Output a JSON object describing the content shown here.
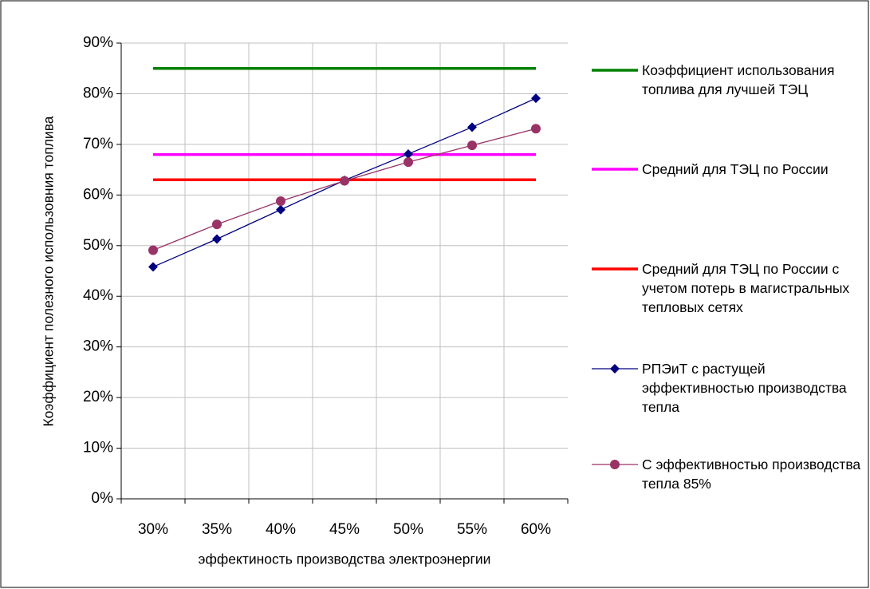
{
  "chart_data": {
    "type": "line",
    "x_label": "эффектиность производства электроэнергии",
    "y_label": "Коэффициент полезного использовния топлива",
    "categories": [
      "30%",
      "35%",
      "40%",
      "45%",
      "50%",
      "55%",
      "60%"
    ],
    "ylim": [
      0,
      90
    ],
    "yticks": [
      {
        "value": 0,
        "label": "0%"
      },
      {
        "value": 10,
        "label": "10%"
      },
      {
        "value": 20,
        "label": "20%"
      },
      {
        "value": 30,
        "label": "30%"
      },
      {
        "value": 40,
        "label": "40%"
      },
      {
        "value": 50,
        "label": "50%"
      },
      {
        "value": 60,
        "label": "60%"
      },
      {
        "value": 70,
        "label": "70%"
      },
      {
        "value": 80,
        "label": "80%"
      },
      {
        "value": 90,
        "label": "90%"
      }
    ],
    "grid": true,
    "series": [
      {
        "name": "Коэффициент использования топлива для лучшей ТЭЦ",
        "color": "#008000",
        "marker": "none",
        "values": [
          85,
          85,
          85,
          85,
          85,
          85,
          85
        ]
      },
      {
        "name": "Средний для ТЭЦ по России",
        "color": "#ff00ff",
        "marker": "none",
        "values": [
          68,
          68,
          68,
          68,
          68,
          68,
          68
        ]
      },
      {
        "name": "Средний для ТЭЦ по России с учетом потерь в магистральных тепловых сетях",
        "color": "#ff0000",
        "marker": "none",
        "values": [
          63,
          63,
          63,
          63,
          63,
          63,
          63
        ]
      },
      {
        "name": "РПЭиТ с растущей эффективностью производства тепла",
        "color": "#000080",
        "marker": "diamond",
        "values": [
          45.8,
          51.3,
          57.1,
          62.9,
          68.1,
          73.4,
          79.1
        ]
      },
      {
        "name": "С эффективностью производства тепла 85%",
        "color": "#993366",
        "marker": "circle",
        "values": [
          49.1,
          54.2,
          58.8,
          62.8,
          66.5,
          69.8,
          73.1
        ]
      }
    ]
  }
}
